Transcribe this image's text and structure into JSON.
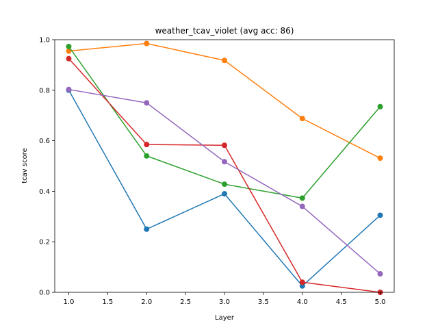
{
  "chart_data": {
    "type": "line",
    "title": "weather_tcav_violet (avg acc: 86)",
    "xlabel": "Layer",
    "ylabel": "tcav score",
    "xlim": [
      0.82,
      5.18
    ],
    "ylim": [
      0.0,
      1.0
    ],
    "xticks": [
      "1.0",
      "1.5",
      "2.0",
      "2.5",
      "3.0",
      "3.5",
      "4.0",
      "4.5",
      "5.0"
    ],
    "yticks": [
      "0.0",
      "0.2",
      "0.4",
      "0.6",
      "0.8",
      "1.0"
    ],
    "grid": false,
    "x": [
      1,
      2,
      3,
      4,
      5
    ],
    "series": [
      {
        "color": "#1f77b4",
        "values": [
          0.8,
          0.25,
          0.39,
          0.025,
          0.305
        ]
      },
      {
        "color": "#ff7f0e",
        "values": [
          0.955,
          0.985,
          0.918,
          0.688,
          0.531
        ]
      },
      {
        "color": "#2ca02c",
        "values": [
          0.973,
          0.54,
          0.428,
          0.373,
          0.735
        ]
      },
      {
        "color": "#d62728",
        "values": [
          0.925,
          0.585,
          0.582,
          0.04,
          0.0
        ]
      },
      {
        "color": "#9467bd",
        "values": [
          0.803,
          0.75,
          0.517,
          0.34,
          0.073
        ]
      }
    ]
  }
}
